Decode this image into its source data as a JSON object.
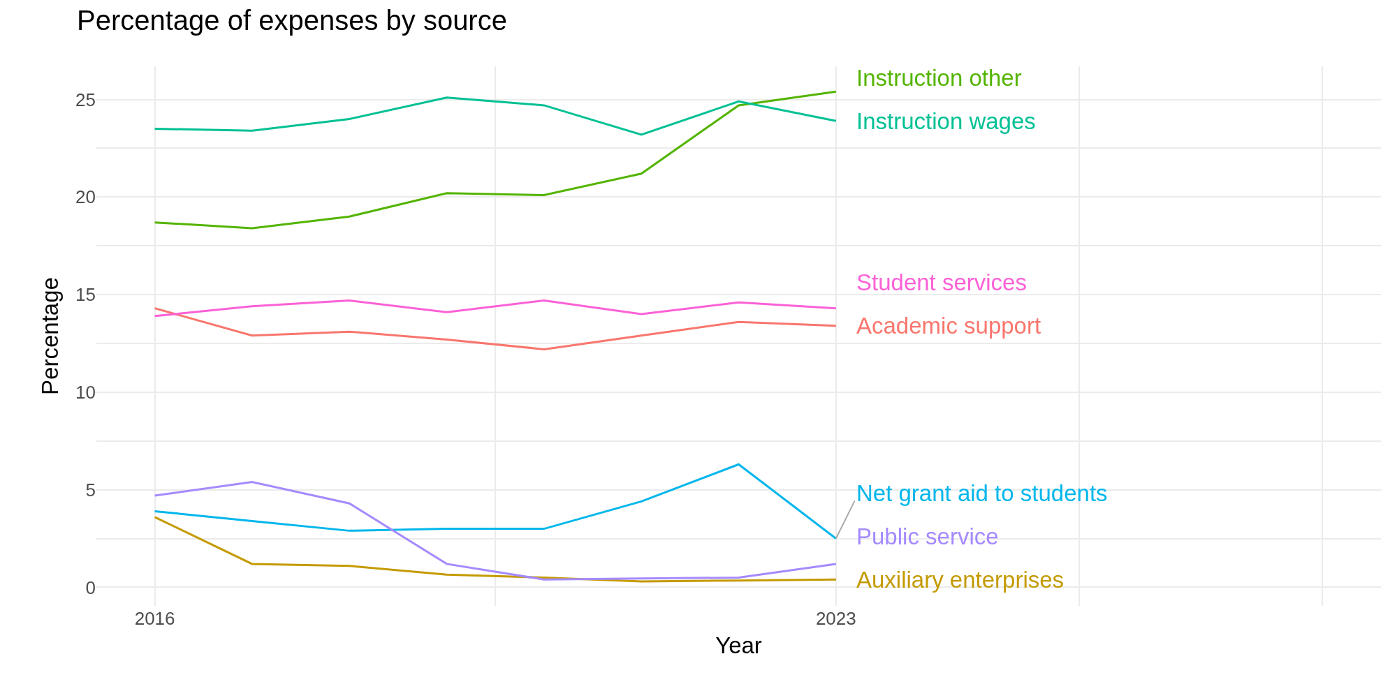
{
  "chart_data": {
    "type": "line",
    "title": "Percentage of expenses by source",
    "xlabel": "Year",
    "ylabel": "Percentage",
    "x": [
      2016,
      2017,
      2018,
      2019,
      2020,
      2021,
      2022,
      2023
    ],
    "xlim": [
      2015.4,
      2028.6
    ],
    "xticks": [
      2016,
      {
        "value": 2019.5,
        "label": null
      },
      2023,
      {
        "value": 2025.5,
        "label": null
      },
      {
        "value": 2028,
        "label": null
      }
    ],
    "ylim": [
      -0.95,
      26.7
    ],
    "yticks": [
      0,
      {
        "value": 2.5,
        "label": null
      },
      5,
      {
        "value": 7.5,
        "label": null
      },
      10,
      {
        "value": 12.5,
        "label": null
      },
      15,
      {
        "value": 17.5,
        "label": null
      },
      20,
      {
        "value": 22.5,
        "label": null
      },
      25
    ],
    "grid": true,
    "legend": false,
    "marker": "none",
    "line_style": "solid",
    "series": [
      {
        "name": "Academic support",
        "color": "#f8766d",
        "values": [
          14.3,
          12.9,
          13.1,
          12.7,
          12.2,
          12.9,
          13.6,
          13.4
        ]
      },
      {
        "name": "Auxiliary enterprises",
        "color": "#c49a00",
        "values": [
          3.6,
          1.2,
          1.1,
          0.65,
          0.5,
          0.3,
          0.35,
          0.4
        ]
      },
      {
        "name": "Instruction other",
        "color": "#53b400",
        "values": [
          18.7,
          18.4,
          19.0,
          20.2,
          20.1,
          21.2,
          24.7,
          25.4
        ]
      },
      {
        "name": "Instruction wages",
        "color": "#00c094",
        "values": [
          23.5,
          23.4,
          24.0,
          25.1,
          24.7,
          23.2,
          24.9,
          23.9
        ]
      },
      {
        "name": "Net grant aid to students",
        "color": "#00b6eb",
        "values": [
          3.9,
          3.4,
          2.9,
          3.0,
          3.0,
          4.4,
          6.3,
          2.5
        ]
      },
      {
        "name": "Public service",
        "color": "#a58aff",
        "values": [
          4.7,
          5.4,
          4.3,
          1.2,
          0.4,
          0.45,
          0.5,
          1.2
        ]
      },
      {
        "name": "Student services",
        "color": "#fb61d7",
        "values": [
          13.9,
          14.4,
          14.7,
          14.1,
          14.7,
          14.0,
          14.6,
          14.3
        ]
      }
    ]
  }
}
